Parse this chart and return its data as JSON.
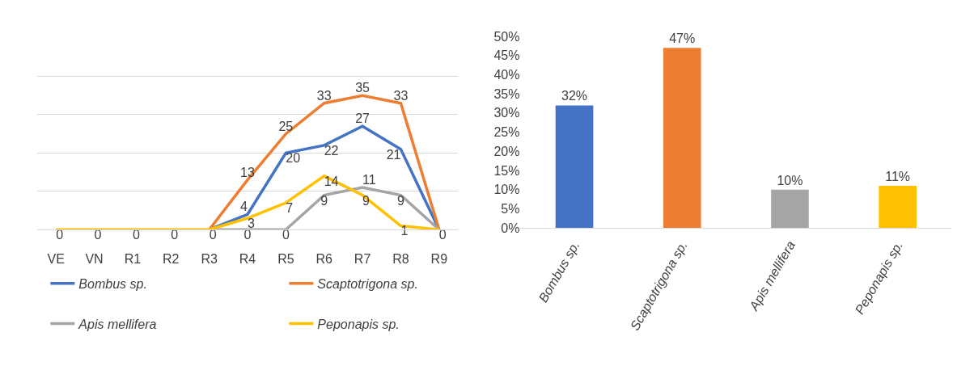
{
  "chart_data": [
    {
      "type": "line",
      "categories": [
        "VE",
        "VN",
        "R1",
        "R2",
        "R3",
        "R4",
        "R5",
        "R6",
        "R7",
        "R8",
        "R9"
      ],
      "series": [
        {
          "name": "Bombus sp.",
          "color": "#4472c4",
          "values": [
            null,
            null,
            null,
            null,
            0,
            4,
            20,
            22,
            27,
            21,
            0
          ],
          "value_labels": [
            null,
            null,
            null,
            null,
            null,
            "4",
            "20",
            "22",
            "27",
            "21",
            null
          ]
        },
        {
          "name": "Scaptotrigona sp.",
          "color": "#ed7d31",
          "values": [
            null,
            null,
            null,
            null,
            0,
            13,
            25,
            33,
            35,
            33,
            0
          ],
          "value_labels": [
            null,
            null,
            null,
            null,
            null,
            "13",
            "25",
            "33",
            "35",
            "33",
            null
          ]
        },
        {
          "name": "Apis mellifera",
          "color": "#a5a5a5",
          "values": [
            null,
            null,
            null,
            null,
            0,
            0,
            0,
            9,
            11,
            9,
            0
          ],
          "value_labels": [
            null,
            null,
            null,
            null,
            null,
            "0",
            "0",
            "9",
            "11",
            "9",
            null
          ]
        },
        {
          "name": "Peponapis sp.",
          "color": "#ffc000",
          "values": [
            0,
            0,
            0,
            0,
            0,
            3,
            7,
            14,
            9,
            1,
            0
          ],
          "value_labels": [
            "0",
            "0",
            "0",
            "0",
            "0",
            "3",
            "7",
            "14",
            "9",
            "1",
            "0"
          ]
        }
      ],
      "ylim": [
        0,
        50
      ],
      "yticks": [
        {
          "value": 0,
          "label": null
        },
        {
          "value": 10,
          "label": null
        },
        {
          "value": 20,
          "label": null
        },
        {
          "value": 30,
          "label": null
        },
        {
          "value": 40,
          "label": null
        },
        {
          "value": 50,
          "label": null
        }
      ],
      "tick_labels": "x",
      "grid": "y",
      "legend": "bottom",
      "marker": "none",
      "line_style": "solid"
    },
    {
      "type": "bar",
      "categories": [
        "Bombus sp.",
        "Scaptotrigona sp.",
        "Apis mellifera",
        "Peponapis sp."
      ],
      "values": [
        32,
        47,
        10,
        11
      ],
      "colors": [
        "#4472c4",
        "#ed7d31",
        "#a5a5a5",
        "#ffc000"
      ],
      "value_labels": [
        "32%",
        "47%",
        "10%",
        "11%"
      ],
      "ylim": [
        0,
        50
      ],
      "yticks": [
        {
          "value": 0,
          "label": "0%"
        },
        {
          "value": 5,
          "label": "5%"
        },
        {
          "value": 10,
          "label": "10%"
        },
        {
          "value": 15,
          "label": "15%"
        },
        {
          "value": 20,
          "label": "20%"
        },
        {
          "value": 25,
          "label": "25%"
        },
        {
          "value": 30,
          "label": "30%"
        },
        {
          "value": 35,
          "label": "35%"
        },
        {
          "value": 40,
          "label": "40%"
        },
        {
          "value": 45,
          "label": "45%"
        },
        {
          "value": 50,
          "label": "50%"
        }
      ],
      "legend": false
    }
  ]
}
